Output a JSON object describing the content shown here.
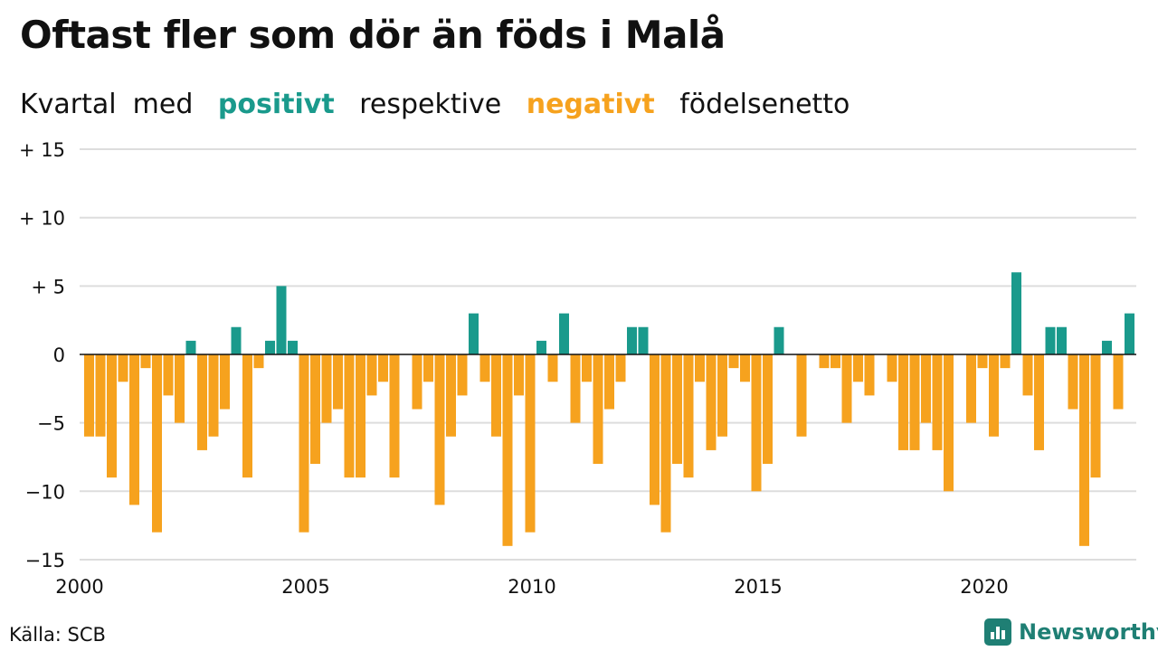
{
  "title": "Oftast fler som dör än föds i Malå",
  "subtitle": {
    "part1": "Kvartal",
    "part2": "med",
    "positive_word": "positivt",
    "part3": "respektive",
    "negative_word": "negativt",
    "part4": "födelsenetto"
  },
  "source": "Källa: SCB",
  "logo_text": "Newsworthy",
  "colors": {
    "positive": "#1a9a8c",
    "negative": "#f6a21e",
    "grid": "#dddddd"
  },
  "chart_data": {
    "type": "bar",
    "x_start": 2000,
    "frequency": "quarterly",
    "ylim": [
      -15,
      15
    ],
    "y_ticks": [
      {
        "value": 15,
        "label": "+ 15"
      },
      {
        "value": 10,
        "label": "+ 10"
      },
      {
        "value": 5,
        "label": "+  5"
      },
      {
        "value": 0,
        "label": "0"
      },
      {
        "value": -5,
        "label": "−5"
      },
      {
        "value": -10,
        "label": "−10"
      },
      {
        "value": -15,
        "label": "−15"
      }
    ],
    "x_ticks": [
      {
        "value": 2000,
        "label": "2000"
      },
      {
        "value": 2005,
        "label": "2005"
      },
      {
        "value": 2010,
        "label": "2010"
      },
      {
        "value": 2015,
        "label": "2015"
      },
      {
        "value": 2020,
        "label": "2020"
      }
    ],
    "grid": true,
    "values": [
      -6,
      -6,
      -9,
      -2,
      -11,
      -1,
      -13,
      -3,
      -5,
      1,
      -7,
      -6,
      -4,
      2,
      -9,
      -1,
      1,
      5,
      1,
      -13,
      -8,
      -5,
      -4,
      -9,
      -9,
      -3,
      -2,
      -9,
      0,
      -4,
      -2,
      -11,
      -6,
      -3,
      3,
      -2,
      -6,
      -14,
      -3,
      -13,
      1,
      -2,
      3,
      -5,
      -2,
      -8,
      -4,
      -2,
      2,
      2,
      -11,
      -13,
      -8,
      -9,
      -2,
      -7,
      -6,
      -1,
      -2,
      -10,
      -8,
      2,
      0,
      -6,
      0,
      -1,
      -1,
      -5,
      -2,
      -3,
      0,
      -2,
      -7,
      -7,
      -5,
      -7,
      -10,
      0,
      -5,
      -1,
      -6,
      -1,
      6,
      -3,
      -7,
      2,
      2,
      -4,
      -14,
      -9,
      1,
      -4,
      3
    ]
  }
}
